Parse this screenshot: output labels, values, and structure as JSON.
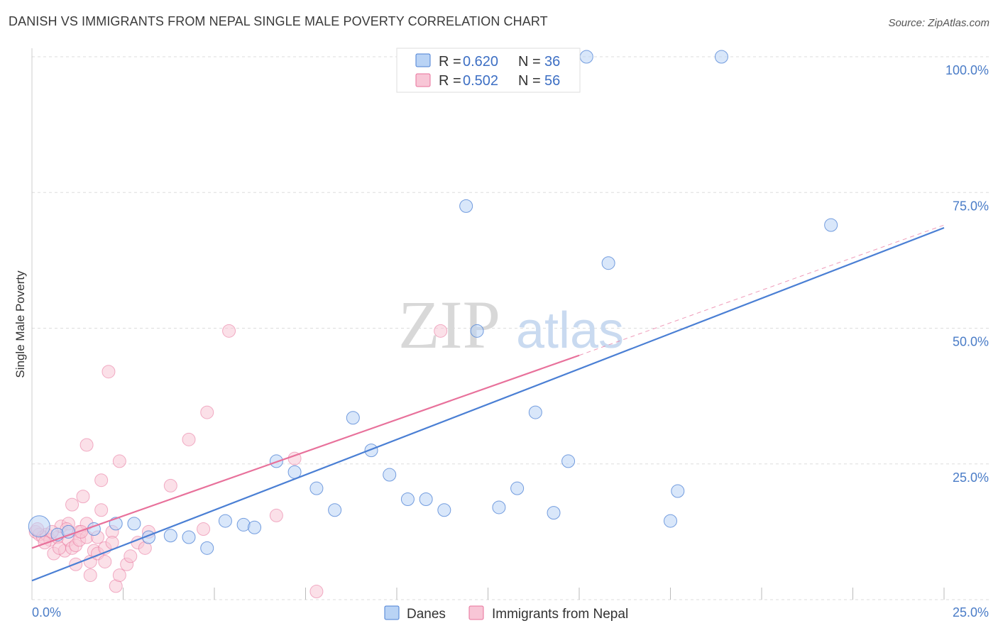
{
  "title": "DANISH VS IMMIGRANTS FROM NEPAL SINGLE MALE POVERTY CORRELATION CHART",
  "source": "Source: ZipAtlas.com",
  "watermark": {
    "zip": "ZIP",
    "atlas": "atlas"
  },
  "chart_data": {
    "type": "scatter",
    "ylabel": "Single Male Poverty",
    "xlim": [
      0,
      25
    ],
    "ylim": [
      0,
      100
    ],
    "x_ticks": [
      "0.0%",
      "25.0%"
    ],
    "y_ticks": [
      {
        "value": 25,
        "label": "25.0%"
      },
      {
        "value": 50,
        "label": "50.0%"
      },
      {
        "value": 75,
        "label": "75.0%"
      },
      {
        "value": 100,
        "label": "100.0%"
      }
    ],
    "grid": true,
    "legend_position": "top-center",
    "series": [
      {
        "name": "Danes",
        "r_label": "R =",
        "r_value": "0.620",
        "n_label": "N =",
        "n_value": "36",
        "color": "#4a7fd4",
        "fill": "#b9d3f5",
        "trend": [
          [
            0,
            3.5
          ],
          [
            25,
            68.5
          ]
        ],
        "points": [
          [
            0.2,
            13.5,
            15
          ],
          [
            0.7,
            12.0,
            9
          ],
          [
            1.7,
            13.0,
            9
          ],
          [
            2.3,
            14.0,
            9
          ],
          [
            2.8,
            14.0,
            9
          ],
          [
            3.2,
            11.5,
            9
          ],
          [
            3.8,
            11.8,
            9
          ],
          [
            4.3,
            11.5,
            9
          ],
          [
            4.8,
            9.5,
            9
          ],
          [
            5.3,
            14.5,
            9
          ],
          [
            5.8,
            13.8,
            9
          ],
          [
            6.1,
            13.3,
            9
          ],
          [
            6.7,
            25.5,
            9
          ],
          [
            7.2,
            23.5,
            9
          ],
          [
            7.8,
            20.5,
            9
          ],
          [
            8.3,
            16.5,
            9
          ],
          [
            8.8,
            33.5,
            9
          ],
          [
            9.3,
            27.5,
            9
          ],
          [
            9.8,
            23.0,
            9
          ],
          [
            10.3,
            18.5,
            9
          ],
          [
            10.8,
            18.5,
            9
          ],
          [
            11.3,
            16.5,
            9
          ],
          [
            11.9,
            72.5,
            9
          ],
          [
            12.2,
            49.5,
            9
          ],
          [
            12.8,
            17.0,
            9
          ],
          [
            13.3,
            20.5,
            9
          ],
          [
            13.8,
            34.5,
            9
          ],
          [
            14.3,
            16.0,
            9
          ],
          [
            14.7,
            25.5,
            9
          ],
          [
            15.2,
            100.0,
            9
          ],
          [
            15.8,
            62.0,
            9
          ],
          [
            17.5,
            14.5,
            9
          ],
          [
            17.7,
            20.0,
            9
          ],
          [
            18.9,
            100.0,
            9
          ],
          [
            21.9,
            69.0,
            9
          ],
          [
            1.0,
            12.5,
            9
          ]
        ]
      },
      {
        "name": "Immigrants from Nepal",
        "r_label": "R =",
        "r_value": "0.502",
        "n_label": "N =",
        "n_value": "56",
        "color": "#e8719b",
        "fill": "#f8c6d6",
        "trend": [
          [
            0,
            9.5
          ],
          [
            15,
            45.0
          ]
        ],
        "trend_dashed": [
          [
            15,
            45.0
          ],
          [
            25,
            69.0
          ]
        ],
        "points": [
          [
            0.1,
            12.5,
            9
          ],
          [
            0.2,
            12.0,
            9
          ],
          [
            0.3,
            11.5,
            9
          ],
          [
            0.4,
            12.0,
            9
          ],
          [
            0.5,
            11.0,
            9
          ],
          [
            0.6,
            8.5,
            9
          ],
          [
            0.7,
            11.5,
            9
          ],
          [
            0.8,
            13.5,
            9
          ],
          [
            0.9,
            9.0,
            9
          ],
          [
            1.0,
            14.0,
            9
          ],
          [
            1.0,
            11.0,
            9
          ],
          [
            1.1,
            9.5,
            9
          ],
          [
            1.1,
            17.5,
            9
          ],
          [
            1.2,
            10.0,
            9
          ],
          [
            1.2,
            6.5,
            9
          ],
          [
            1.3,
            12.5,
            9
          ],
          [
            1.3,
            11.0,
            9
          ],
          [
            1.4,
            19.0,
            9
          ],
          [
            1.5,
            14.0,
            9
          ],
          [
            1.5,
            11.5,
            9
          ],
          [
            1.5,
            28.5,
            9
          ],
          [
            1.6,
            4.5,
            9
          ],
          [
            1.6,
            7.0,
            9
          ],
          [
            1.7,
            9.0,
            9
          ],
          [
            1.8,
            8.5,
            9
          ],
          [
            1.8,
            11.5,
            9
          ],
          [
            1.9,
            16.5,
            9
          ],
          [
            1.9,
            22.0,
            9
          ],
          [
            2.0,
            7.0,
            9
          ],
          [
            2.0,
            9.5,
            9
          ],
          [
            2.1,
            42.0,
            9
          ],
          [
            2.2,
            12.5,
            9
          ],
          [
            2.2,
            10.5,
            9
          ],
          [
            2.3,
            2.5,
            9
          ],
          [
            2.4,
            4.5,
            9
          ],
          [
            2.4,
            25.5,
            9
          ],
          [
            2.6,
            6.5,
            9
          ],
          [
            2.7,
            8.0,
            9
          ],
          [
            2.9,
            10.5,
            9
          ],
          [
            3.1,
            9.5,
            9
          ],
          [
            3.2,
            12.5,
            9
          ],
          [
            3.8,
            21.0,
            9
          ],
          [
            4.3,
            29.5,
            9
          ],
          [
            4.7,
            13.0,
            9
          ],
          [
            4.8,
            34.5,
            9
          ],
          [
            5.4,
            49.5,
            9
          ],
          [
            6.7,
            15.5,
            9
          ],
          [
            7.2,
            26.0,
            9
          ],
          [
            7.8,
            1.5,
            9
          ],
          [
            11.2,
            49.5,
            9
          ],
          [
            0.15,
            13.0,
            9
          ],
          [
            0.35,
            10.5,
            9
          ],
          [
            0.55,
            12.5,
            9
          ],
          [
            0.75,
            9.5,
            9
          ],
          [
            0.95,
            13.0,
            9
          ],
          [
            1.35,
            12.5,
            9
          ]
        ]
      }
    ]
  }
}
